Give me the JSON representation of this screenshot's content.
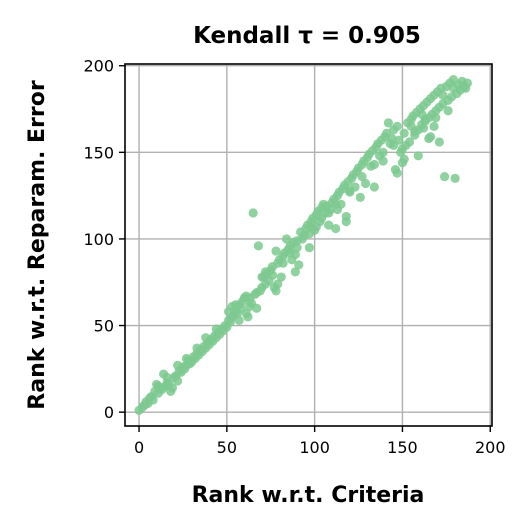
{
  "chart_data": {
    "type": "scatter",
    "title": "Kendall τ = 0.905",
    "xlabel": "Rank w.r.t. Criteria",
    "ylabel": "Rank w.r.t. Reparam. Error",
    "xlim": [
      -8,
      201
    ],
    "ylim": [
      -8,
      201
    ],
    "xticks": [
      "0",
      "50",
      "100",
      "150",
      "200"
    ],
    "yticks": [
      "0",
      "50",
      "100",
      "150",
      "200"
    ],
    "grid": true,
    "point_color": "#7dc98f",
    "series": [
      {
        "points": [
          [
            0,
            1
          ],
          [
            2,
            3
          ],
          [
            3,
            4
          ],
          [
            4,
            6
          ],
          [
            5,
            5
          ],
          [
            6,
            8
          ],
          [
            7,
            9
          ],
          [
            8,
            7
          ],
          [
            9,
            12
          ],
          [
            10,
            16
          ],
          [
            11,
            11
          ],
          [
            12,
            14
          ],
          [
            13,
            13
          ],
          [
            14,
            22
          ],
          [
            15,
            15
          ],
          [
            16,
            17
          ],
          [
            17,
            16
          ],
          [
            18,
            12
          ],
          [
            19,
            14
          ],
          [
            20,
            20
          ],
          [
            21,
            21
          ],
          [
            22,
            18
          ],
          [
            23,
            24
          ],
          [
            24,
            23
          ],
          [
            25,
            26
          ],
          [
            26,
            25
          ],
          [
            27,
            27
          ],
          [
            28,
            30
          ],
          [
            29,
            28
          ],
          [
            30,
            29
          ],
          [
            31,
            32
          ],
          [
            32,
            31
          ],
          [
            33,
            34
          ],
          [
            34,
            33
          ],
          [
            35,
            36
          ],
          [
            36,
            35
          ],
          [
            37,
            38
          ],
          [
            38,
            37
          ],
          [
            39,
            40
          ],
          [
            40,
            39
          ],
          [
            41,
            42
          ],
          [
            42,
            41
          ],
          [
            43,
            44
          ],
          [
            44,
            43
          ],
          [
            45,
            46
          ],
          [
            46,
            45
          ],
          [
            47,
            48
          ],
          [
            48,
            47
          ],
          [
            49,
            50
          ],
          [
            50,
            49
          ],
          [
            51,
            53
          ],
          [
            52,
            52
          ],
          [
            53,
            55
          ],
          [
            54,
            56
          ],
          [
            55,
            58
          ],
          [
            56,
            57
          ],
          [
            57,
            62
          ],
          [
            58,
            60
          ],
          [
            59,
            64
          ],
          [
            60,
            66
          ],
          [
            61,
            57
          ],
          [
            62,
            55
          ],
          [
            63,
            61
          ],
          [
            64,
            63
          ],
          [
            65,
            115
          ],
          [
            66,
            68
          ],
          [
            67,
            60
          ],
          [
            68,
            96
          ],
          [
            69,
            70
          ],
          [
            70,
            72
          ],
          [
            71,
            78
          ],
          [
            72,
            74
          ],
          [
            73,
            80
          ],
          [
            74,
            76
          ],
          [
            75,
            82
          ],
          [
            76,
            84
          ],
          [
            77,
            72
          ],
          [
            78,
            70
          ],
          [
            79,
            86
          ],
          [
            80,
            88
          ],
          [
            81,
            78
          ],
          [
            82,
            90
          ],
          [
            83,
            92
          ],
          [
            84,
            100
          ],
          [
            85,
            94
          ],
          [
            86,
            96
          ],
          [
            87,
            88
          ],
          [
            88,
            98
          ],
          [
            89,
            91
          ],
          [
            90,
            95
          ],
          [
            91,
            85
          ],
          [
            92,
            104
          ],
          [
            93,
            100
          ],
          [
            94,
            102
          ],
          [
            95,
            106
          ],
          [
            96,
            108
          ],
          [
            97,
            95
          ],
          [
            98,
            110
          ],
          [
            99,
            112
          ],
          [
            100,
            105
          ],
          [
            101,
            114
          ],
          [
            102,
            116
          ],
          [
            103,
            110
          ],
          [
            104,
            118
          ],
          [
            105,
            120
          ],
          [
            106,
            115
          ],
          [
            107,
            119
          ],
          [
            108,
            108
          ],
          [
            109,
            117
          ],
          [
            110,
            121
          ],
          [
            111,
            123
          ],
          [
            112,
            106
          ],
          [
            113,
            125
          ],
          [
            114,
            127
          ],
          [
            115,
            120
          ],
          [
            116,
            129
          ],
          [
            117,
            131
          ],
          [
            118,
            113
          ],
          [
            119,
            133
          ],
          [
            120,
            127
          ],
          [
            121,
            135
          ],
          [
            122,
            137
          ],
          [
            123,
            130
          ],
          [
            124,
            139
          ],
          [
            125,
            141
          ],
          [
            126,
            124
          ],
          [
            127,
            143
          ],
          [
            128,
            145
          ],
          [
            129,
            132
          ],
          [
            130,
            147
          ],
          [
            131,
            149
          ],
          [
            132,
            142
          ],
          [
            133,
            151
          ],
          [
            134,
            130
          ],
          [
            135,
            153
          ],
          [
            136,
            155
          ],
          [
            137,
            148
          ],
          [
            138,
            157
          ],
          [
            139,
            145
          ],
          [
            140,
            159
          ],
          [
            141,
            161
          ],
          [
            142,
            167
          ],
          [
            143,
            155
          ],
          [
            144,
            158
          ],
          [
            145,
            163
          ],
          [
            146,
            140
          ],
          [
            147,
            165
          ],
          [
            148,
            157
          ],
          [
            149,
            150
          ],
          [
            150,
            152
          ],
          [
            151,
            146
          ],
          [
            152,
            154
          ],
          [
            153,
            167
          ],
          [
            154,
            156
          ],
          [
            155,
            169
          ],
          [
            156,
            171
          ],
          [
            157,
            160
          ],
          [
            158,
            173
          ],
          [
            159,
            163
          ],
          [
            160,
            175
          ],
          [
            161,
            166
          ],
          [
            162,
            177
          ],
          [
            163,
            168
          ],
          [
            164,
            179
          ],
          [
            165,
            170
          ],
          [
            166,
            181
          ],
          [
            167,
            172
          ],
          [
            168,
            183
          ],
          [
            169,
            174
          ],
          [
            170,
            185
          ],
          [
            171,
            176
          ],
          [
            172,
            187
          ],
          [
            173,
            178
          ],
          [
            174,
            136
          ],
          [
            175,
            188
          ],
          [
            176,
            180
          ],
          [
            177,
            190
          ],
          [
            178,
            182
          ],
          [
            179,
            192
          ],
          [
            180,
            135
          ],
          [
            181,
            184
          ],
          [
            182,
            189
          ],
          [
            183,
            186
          ],
          [
            184,
            191
          ],
          [
            185,
            188
          ],
          [
            186,
            187
          ],
          [
            187,
            190
          ],
          [
            151,
            161
          ],
          [
            157,
            162
          ],
          [
            168,
            165
          ],
          [
            163,
            169
          ],
          [
            171,
            156
          ],
          [
            165,
            158
          ],
          [
            169,
            170
          ],
          [
            159,
            148
          ],
          [
            147,
            138
          ],
          [
            150,
            144
          ],
          [
            162,
            164
          ],
          [
            166,
            159
          ],
          [
            176,
            174
          ],
          [
            120,
            128
          ],
          [
            118,
            110
          ],
          [
            113,
            117
          ],
          [
            108,
            115
          ],
          [
            97,
            103
          ],
          [
            89,
            81
          ],
          [
            82,
            86
          ],
          [
            79,
            74
          ],
          [
            76,
            79
          ],
          [
            70,
            78
          ],
          [
            67,
            69
          ],
          [
            63,
            66
          ],
          [
            55,
            62
          ],
          [
            51,
            58
          ],
          [
            44,
            48
          ],
          [
            38,
            43
          ],
          [
            33,
            37
          ],
          [
            27,
            31
          ],
          [
            22,
            27
          ],
          [
            16,
            20
          ],
          [
            11,
            15
          ],
          [
            57,
            53
          ],
          [
            72,
            81
          ],
          [
            78,
            93
          ],
          [
            90,
            99
          ],
          [
            98,
            107
          ],
          [
            104,
            112
          ],
          [
            112,
            120
          ],
          [
            127,
            136
          ],
          [
            134,
            143
          ],
          [
            139,
            150
          ],
          [
            145,
            154
          ],
          [
            155,
            165
          ],
          [
            161,
            172
          ],
          [
            173,
            183
          ],
          [
            179,
            187
          ],
          [
            53,
            61
          ],
          [
            61,
            67
          ],
          [
            86,
            92
          ],
          [
            101,
            107
          ]
        ]
      }
    ]
  }
}
